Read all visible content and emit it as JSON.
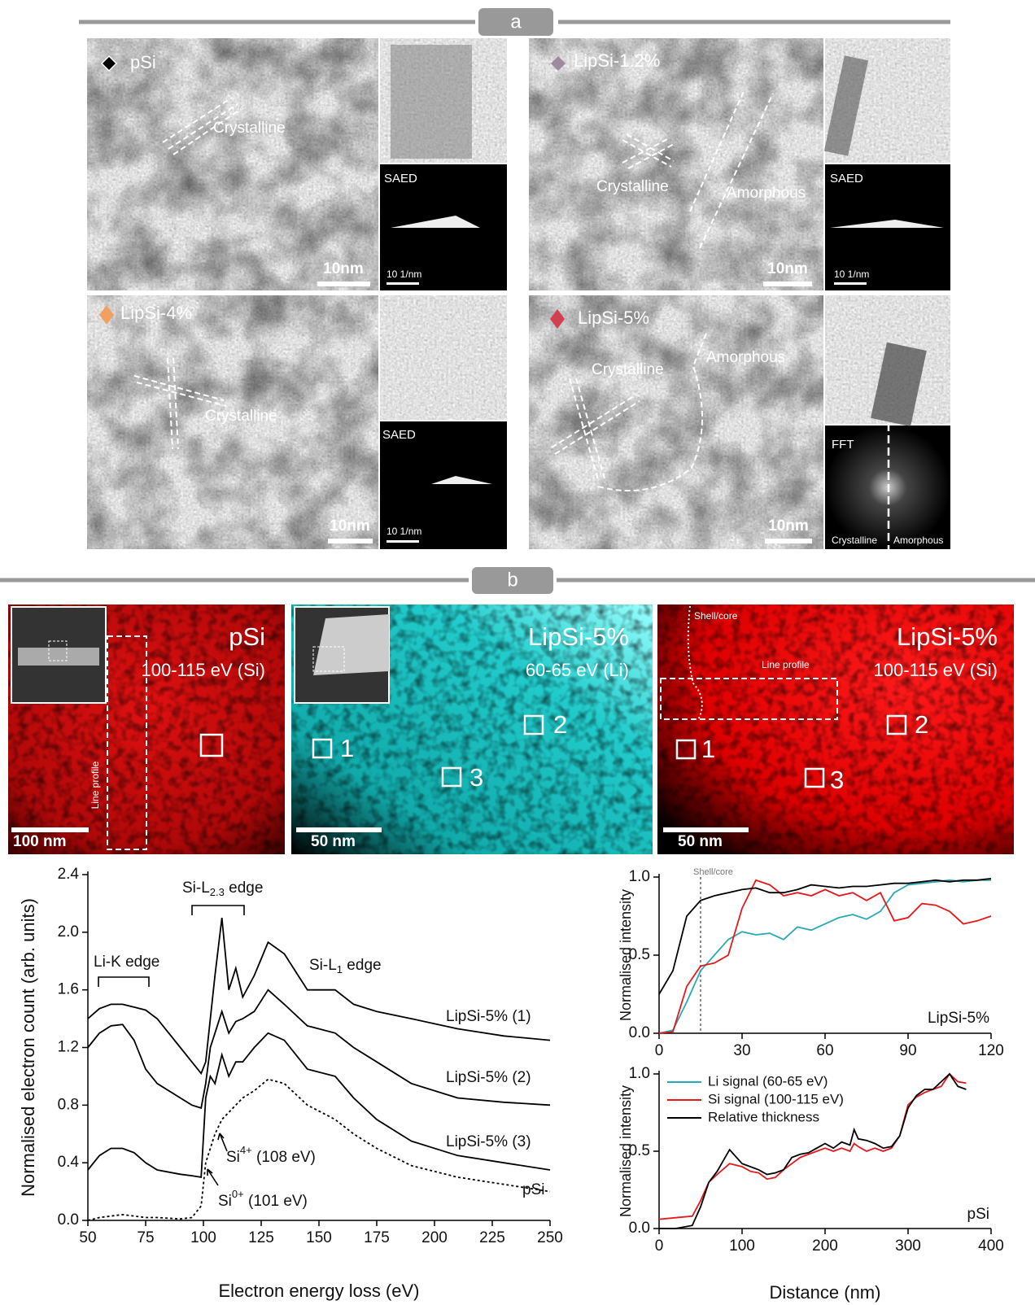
{
  "panel_a": {
    "label": "a",
    "tiles": [
      {
        "name": "pSi",
        "scale_bar": "10nm",
        "inset_label": "SAED",
        "inset_scale": "10 1/nm",
        "annotations": [
          "Crystalline"
        ]
      },
      {
        "name": "LipSi-1.2%",
        "scale_bar": "10nm",
        "inset_label": "SAED",
        "inset_scale": "10 1/nm",
        "annotations": [
          "Crystalline",
          "Amorphous"
        ]
      },
      {
        "name": "LipSi-4%",
        "scale_bar": "10nm",
        "inset_label": "SAED",
        "inset_scale": "10 1/nm",
        "annotations": [
          "Crystalline"
        ]
      },
      {
        "name": "LipSi-5%",
        "scale_bar": "10nm",
        "inset_label": "FFT",
        "inset_bottom": [
          "Crystalline",
          "Amorphous"
        ],
        "annotations": [
          "Crystalline",
          "Amorphous"
        ]
      }
    ]
  },
  "panel_b": {
    "label": "b",
    "maps": [
      {
        "title": "pSi",
        "energy": "100-115 eV (Si)",
        "scale_bar": "100 nm",
        "line_profile": "Line profile"
      },
      {
        "title": "LipSi-5%",
        "energy": "60-65 eV (Li)",
        "scale_bar": "50 nm",
        "regions": [
          "1",
          "2",
          "3"
        ]
      },
      {
        "title": "LipSi-5%",
        "energy": "100-115 eV (Si)",
        "scale_bar": "50 nm",
        "shell_core": "Shell/core",
        "line_profile": "Line profile",
        "regions": [
          "1",
          "2",
          "3"
        ]
      }
    ]
  },
  "chart_data": [
    {
      "type": "line",
      "xlabel": "Electron energy loss (eV)",
      "ylabel": "Normalised electron count (arb. units)",
      "xlim": [
        50,
        250
      ],
      "xticks": [
        50,
        75,
        100,
        125,
        150,
        175,
        200,
        225,
        250
      ],
      "ylim": [
        0,
        2.4
      ],
      "yticks": [
        {
          "value": 0,
          "label": "0.0"
        },
        0.4,
        0.8,
        1.2,
        1.6,
        {
          "value": 2,
          "label": "2.0"
        },
        2.4
      ],
      "x": [
        50,
        55,
        60,
        65,
        70,
        75,
        80,
        90,
        95,
        99,
        101,
        103,
        105,
        108,
        111,
        114,
        117,
        122,
        128,
        135,
        145,
        157,
        165,
        175,
        190,
        210,
        230,
        250
      ],
      "series": [
        {
          "name": "LipSi-5% (1)",
          "color": "#000000",
          "values": [
            1.4,
            1.47,
            1.5,
            1.5,
            1.48,
            1.46,
            1.4,
            1.2,
            1.1,
            1.02,
            1.1,
            1.4,
            1.7,
            2.1,
            1.6,
            1.75,
            1.55,
            1.7,
            1.93,
            1.85,
            1.6,
            1.6,
            1.5,
            1.45,
            1.4,
            1.33,
            1.28,
            1.25
          ]
        },
        {
          "name": "LipSi-5% (2)",
          "color": "#000000",
          "values": [
            1.2,
            1.3,
            1.35,
            1.36,
            1.25,
            1.05,
            0.95,
            0.85,
            0.8,
            0.78,
            0.95,
            1.2,
            1.3,
            1.45,
            1.3,
            1.38,
            1.4,
            1.45,
            1.6,
            1.5,
            1.35,
            1.3,
            1.2,
            1.1,
            0.95,
            0.85,
            0.82,
            0.8
          ]
        },
        {
          "name": "LipSi-5% (3)",
          "color": "#000000",
          "values": [
            0.35,
            0.45,
            0.5,
            0.5,
            0.47,
            0.4,
            0.35,
            0.32,
            0.31,
            0.3,
            0.85,
            1.0,
            0.95,
            1.15,
            1.0,
            1.1,
            1.1,
            1.2,
            1.3,
            1.25,
            1.05,
            1.0,
            0.85,
            0.7,
            0.55,
            0.45,
            0.4,
            0.35
          ]
        },
        {
          "name": "pSi",
          "color": "#000000",
          "dashed": true,
          "values": [
            0.0,
            0.02,
            0.03,
            0.04,
            0.03,
            0.02,
            0.02,
            0.01,
            0.02,
            0.1,
            0.4,
            0.5,
            0.6,
            0.7,
            0.75,
            0.8,
            0.85,
            0.9,
            0.98,
            0.95,
            0.8,
            0.7,
            0.6,
            0.5,
            0.38,
            0.3,
            0.25,
            0.2
          ]
        }
      ],
      "annotations": [
        {
          "text": "Li-K edge"
        },
        {
          "text": "Si-L",
          "sub": "2.3",
          "tail": " edge"
        },
        {
          "text": "Si-L",
          "sub": "1",
          "tail": " edge"
        },
        {
          "text": "Si",
          "sup": "4+",
          "tail": " (108 eV)"
        },
        {
          "text": "Si",
          "sup": "0+",
          "tail": " (101 eV)"
        }
      ]
    },
    {
      "type": "line",
      "ylabel": "Normalised intensity",
      "xlim": [
        0,
        120
      ],
      "xticks": [
        0,
        30,
        60,
        90,
        120
      ],
      "ylim": [
        0,
        1
      ],
      "yticks": [
        {
          "value": 0,
          "label": "0.0"
        },
        0.5,
        {
          "value": 1,
          "label": "1.0"
        }
      ],
      "x": [
        0,
        5,
        10,
        15,
        20,
        25,
        30,
        35,
        40,
        45,
        50,
        55,
        60,
        65,
        70,
        75,
        80,
        85,
        90,
        95,
        100,
        105,
        110,
        115,
        120
      ],
      "series": [
        {
          "color": "#2aa9b4",
          "values": [
            0,
            0.02,
            0.2,
            0.4,
            0.5,
            0.6,
            0.65,
            0.63,
            0.64,
            0.6,
            0.68,
            0.66,
            0.7,
            0.74,
            0.76,
            0.73,
            0.78,
            0.9,
            0.95,
            0.96,
            0.97,
            0.98,
            0.97,
            0.98,
            0.98
          ]
        },
        {
          "color": "#e8171b",
          "values": [
            0,
            0.01,
            0.3,
            0.43,
            0.45,
            0.5,
            0.8,
            0.98,
            0.95,
            0.88,
            0.9,
            0.88,
            0.92,
            0.88,
            0.9,
            0.85,
            0.9,
            0.72,
            0.74,
            0.83,
            0.82,
            0.78,
            0.7,
            0.72,
            0.75
          ]
        },
        {
          "color": "#000000",
          "values": [
            0.25,
            0.4,
            0.75,
            0.85,
            0.88,
            0.9,
            0.92,
            0.93,
            0.9,
            0.9,
            0.92,
            0.95,
            0.94,
            0.93,
            0.94,
            0.94,
            0.95,
            0.96,
            0.96,
            0.97,
            0.98,
            0.97,
            0.98,
            0.98,
            0.99
          ]
        }
      ],
      "vline": {
        "text": "Shell/core",
        "x": 15
      },
      "label": "LipSi-5%"
    },
    {
      "type": "line",
      "xlabel": "Distance (nm)",
      "ylabel": "Normalised intensity",
      "xlim": [
        0,
        400
      ],
      "xticks": [
        0,
        100,
        200,
        300,
        400
      ],
      "ylim": [
        0,
        1
      ],
      "yticks": [
        {
          "value": 0,
          "label": "0.0"
        },
        0.5,
        {
          "value": 1,
          "label": "1.0"
        }
      ],
      "legend": "upper left",
      "x": [
        0,
        20,
        40,
        50,
        60,
        70,
        85,
        100,
        110,
        120,
        130,
        140,
        150,
        160,
        170,
        180,
        190,
        200,
        210,
        220,
        230,
        235,
        240,
        250,
        260,
        270,
        280,
        290,
        300,
        310,
        320,
        330,
        340,
        350,
        360,
        370
      ],
      "series": [
        {
          "name": "Li signal (60-65 eV)",
          "color": "#2aa9b4",
          "values": [
            null,
            null,
            null,
            null,
            null,
            null,
            null,
            null,
            null,
            null,
            null,
            null,
            null,
            null,
            null,
            null,
            null,
            null,
            null,
            null,
            null,
            null,
            null,
            null,
            null,
            null,
            null,
            null,
            null,
            null,
            null,
            null,
            null,
            null,
            null,
            null
          ]
        },
        {
          "name": "Si signal (100-115 eV)",
          "color": "#e8171b",
          "values": [
            0.06,
            0.07,
            0.08,
            0.18,
            0.3,
            0.35,
            0.42,
            0.4,
            0.37,
            0.36,
            0.32,
            0.33,
            0.38,
            0.42,
            0.46,
            0.48,
            0.5,
            0.52,
            0.5,
            0.52,
            0.5,
            0.55,
            0.53,
            0.5,
            0.52,
            0.5,
            0.52,
            0.6,
            0.8,
            0.85,
            0.88,
            0.9,
            0.92,
            1.0,
            0.95,
            0.94
          ]
        },
        {
          "name": "Relative thickness",
          "color": "#000000",
          "values": [
            0.0,
            0.0,
            0.02,
            0.14,
            0.3,
            0.37,
            0.51,
            0.42,
            0.4,
            0.38,
            0.35,
            0.36,
            0.38,
            0.46,
            0.48,
            0.49,
            0.52,
            0.55,
            0.52,
            0.56,
            0.54,
            0.64,
            0.58,
            0.57,
            0.55,
            0.52,
            0.53,
            0.6,
            0.78,
            0.86,
            0.9,
            0.9,
            0.95,
            1.0,
            0.92,
            0.9
          ]
        }
      ],
      "label": "pSi"
    }
  ]
}
